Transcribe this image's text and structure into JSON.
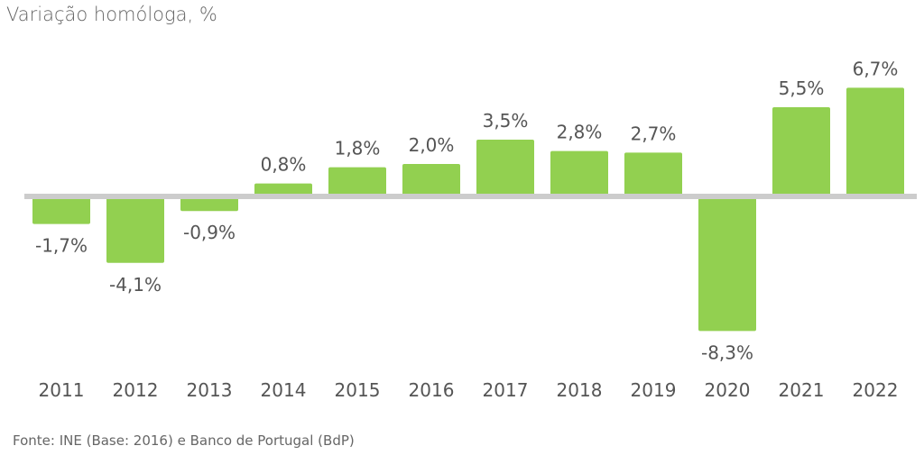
{
  "chart_data": {
    "type": "bar",
    "ylabel": "Variação homóloga, %",
    "source": "Fonte: INE (Base: 2016) e Banco de Portugal (BdP)",
    "categories": [
      "2011",
      "2012",
      "2013",
      "2014",
      "2015",
      "2016",
      "2017",
      "2018",
      "2019",
      "2020",
      "2021",
      "2022"
    ],
    "values": [
      -1.7,
      -4.1,
      -0.9,
      0.8,
      1.8,
      2.0,
      3.5,
      2.8,
      2.7,
      -8.3,
      5.5,
      6.7
    ],
    "value_labels": [
      "-1,7%",
      "-4,1%",
      "-0,9%",
      "0,8%",
      "1,8%",
      "2,0%",
      "3,5%",
      "2,8%",
      "2,7%",
      "-8,3%",
      "5,5%",
      "6,7%"
    ],
    "ylim": [
      -8.3,
      6.7
    ],
    "bar_color": "#92d050",
    "axis_color": "#cccccc",
    "grid": false,
    "legend": "none"
  }
}
